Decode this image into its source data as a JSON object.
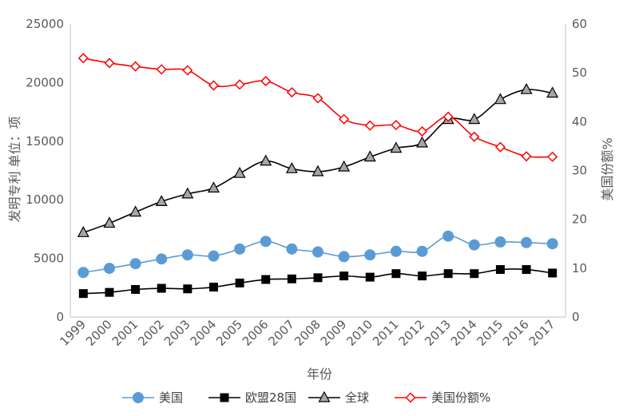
{
  "chart_data": {
    "type": "line",
    "xlabel": "年份",
    "ylabel": "发明专利 单位：项",
    "y2label": "美国份额%",
    "categories": [
      "1999",
      "2000",
      "2001",
      "2002",
      "2003",
      "2004",
      "2005",
      "2006",
      "2007",
      "2008",
      "2009",
      "2010",
      "2011",
      "2012",
      "2013",
      "2014",
      "2015",
      "2016",
      "2017"
    ],
    "ylim": [
      0,
      25000
    ],
    "yticks": [
      "0",
      "5000",
      "10000",
      "15000",
      "20000",
      "25000"
    ],
    "y2lim": [
      0,
      60
    ],
    "y2ticks": [
      "0",
      "10",
      "20",
      "30",
      "40",
      "50",
      "60"
    ],
    "grid": false,
    "legend_position": "bottom",
    "series": [
      {
        "name": "美国",
        "axis": "left",
        "marker": "circle",
        "color": "#5b9bd5",
        "values": [
          3800,
          4150,
          4550,
          4950,
          5300,
          5200,
          5800,
          6450,
          5800,
          5550,
          5150,
          5300,
          5600,
          5600,
          6900,
          6150,
          6400,
          6350,
          6250
        ]
      },
      {
        "name": "欧盟28国",
        "axis": "left",
        "marker": "square",
        "color": "#000000",
        "values": [
          2000,
          2100,
          2350,
          2450,
          2400,
          2550,
          2900,
          3200,
          3250,
          3350,
          3500,
          3400,
          3700,
          3500,
          3700,
          3700,
          4050,
          4050,
          3750
        ]
      },
      {
        "name": "全球",
        "axis": "left",
        "marker": "triangle",
        "color": "#000000",
        "values": [
          7200,
          8000,
          8950,
          9850,
          10500,
          11000,
          12250,
          13300,
          12650,
          12400,
          12800,
          13650,
          14400,
          14850,
          16850,
          16850,
          18550,
          19400,
          19100
        ]
      },
      {
        "name": "美国份额%",
        "axis": "right",
        "marker": "diamond",
        "color": "#ff0000",
        "values": [
          53.0,
          52.0,
          51.3,
          50.7,
          50.5,
          47.4,
          47.6,
          48.3,
          46.0,
          44.8,
          40.5,
          39.2,
          39.3,
          38.0,
          41.0,
          36.9,
          34.8,
          32.9,
          32.8
        ]
      }
    ]
  }
}
